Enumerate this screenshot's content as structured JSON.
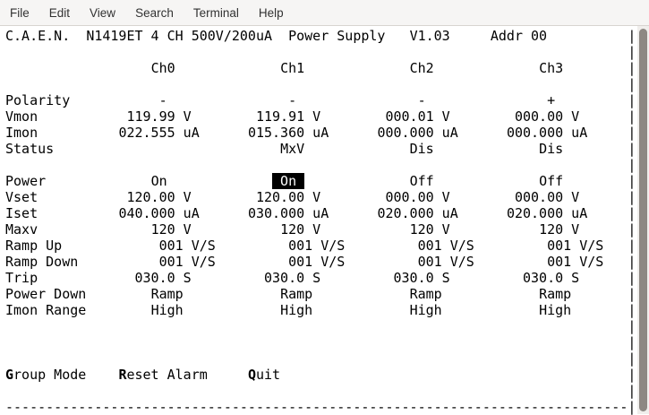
{
  "menubar": {
    "items": [
      "File",
      "Edit",
      "View",
      "Search",
      "Terminal",
      "Help"
    ]
  },
  "header": {
    "brand": "C.A.E.N.",
    "model": "N1419ET 4 CH 500V/200uA",
    "product": "Power Supply",
    "version": "V1.03",
    "address": "Addr 00"
  },
  "channels": [
    "Ch0",
    "Ch1",
    "Ch2",
    "Ch3"
  ],
  "rows": [
    {
      "label": "Polarity",
      "values": [
        "-",
        "-",
        "-",
        "+"
      ]
    },
    {
      "label": "Vmon",
      "values": [
        "119.99 V",
        "119.91 V",
        "000.01 V",
        "000.00 V"
      ]
    },
    {
      "label": "Imon",
      "values": [
        "022.555 uA",
        "015.360 uA",
        "000.000 uA",
        "000.000 uA"
      ]
    },
    {
      "label": "Status",
      "values": [
        "",
        "MxV",
        "Dis",
        "Dis"
      ]
    },
    {
      "label": "Power",
      "values": [
        "On",
        "On",
        "Off",
        "Off"
      ]
    },
    {
      "label": "Vset",
      "values": [
        "120.00 V",
        "120.00 V",
        "000.00 V",
        "000.00 V"
      ]
    },
    {
      "label": "Iset",
      "values": [
        "040.000 uA",
        "030.000 uA",
        "020.000 uA",
        "020.000 uA"
      ]
    },
    {
      "label": "Maxv",
      "values": [
        "120 V",
        "120 V",
        "120 V",
        "120 V"
      ]
    },
    {
      "label": "Ramp Up",
      "values": [
        "001 V/S",
        "001 V/S",
        "001 V/S",
        "001 V/S"
      ]
    },
    {
      "label": "Ramp Down",
      "values": [
        "001 V/S",
        "001 V/S",
        "001 V/S",
        "001 V/S"
      ]
    },
    {
      "label": "Trip",
      "values": [
        "030.0 S",
        "030.0 S",
        "030.0 S",
        "030.0 S"
      ]
    },
    {
      "label": "Power Down",
      "values": [
        "Ramp",
        "Ramp",
        "Ramp",
        "Ramp"
      ]
    },
    {
      "label": "Imon Range",
      "values": [
        "High",
        "High",
        "High",
        "High"
      ]
    }
  ],
  "selected_cell": {
    "row": "Power",
    "channel": 1,
    "value": "On"
  },
  "commands": [
    {
      "label": "Group Mode",
      "hotkey": "G"
    },
    {
      "label": "Reset Alarm",
      "hotkey": "R"
    },
    {
      "label": "Quit",
      "hotkey": "Q"
    }
  ],
  "colors": {
    "terminal_bg": "#ffffff",
    "terminal_fg": "#000000",
    "selection_bg": "#000000",
    "selection_fg": "#ffffff",
    "menubar_bg": "#f6f5f4"
  }
}
